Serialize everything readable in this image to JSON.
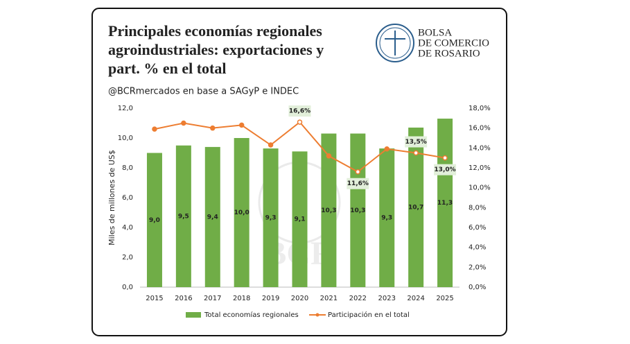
{
  "chart_data": {
    "type": "bar",
    "title_lines": [
      "Principales economías regionales",
      "agroindustriales: exportaciones y",
      "part. % en el total"
    ],
    "subtitle": "@BCRmercados en base a SAGyP e INDEC",
    "logo": [
      "BOLSA",
      "DE COMERCIO",
      "DE ROSARIO"
    ],
    "watermark": "BCR",
    "y_label": "Miles de millones de US$",
    "categories": [
      "2015",
      "2016",
      "2017",
      "2018",
      "2019",
      "2020",
      "2021",
      "2022",
      "2023",
      "2024",
      "2025"
    ],
    "series": [
      {
        "name": "Total economías regionales",
        "type": "bar",
        "color": "#70ad47",
        "values": [
          9.0,
          9.5,
          9.4,
          10.0,
          9.3,
          9.1,
          10.3,
          10.3,
          9.3,
          10.7,
          11.3
        ],
        "value_labels": [
          "9,0",
          "9,5",
          "9,4",
          "10,0",
          "9,3",
          "9,1",
          "10,3",
          "10,3",
          "9,3",
          "10,7",
          "11,3"
        ]
      },
      {
        "name": "Participación en el total",
        "type": "line",
        "axis": "y2",
        "color": "#ed7d31",
        "values": [
          15.9,
          16.5,
          16.0,
          16.3,
          14.3,
          16.6,
          13.2,
          11.6,
          13.9,
          13.5,
          13.0
        ],
        "value_labels": [
          null,
          null,
          null,
          null,
          null,
          "16,6%",
          null,
          "11,6%",
          null,
          "13,5%",
          "13,0%"
        ]
      }
    ],
    "ylim": [
      0,
      12
    ],
    "yticks": [
      {
        "value": 0,
        "label": "0,0"
      },
      {
        "value": 2,
        "label": "2,0"
      },
      {
        "value": 4,
        "label": "4,0"
      },
      {
        "value": 6,
        "label": "6,0"
      },
      {
        "value": 8,
        "label": "8,0"
      },
      {
        "value": 10,
        "label": "10,0"
      },
      {
        "value": 12,
        "label": "12,0"
      }
    ],
    "y2lim": [
      0,
      18
    ],
    "y2ticks": [
      {
        "value": 0,
        "label": "0,0%"
      },
      {
        "value": 2,
        "label": "2,0%"
      },
      {
        "value": 4,
        "label": "4,0%"
      },
      {
        "value": 6,
        "label": "6,0%"
      },
      {
        "value": 8,
        "label": "8,0%"
      },
      {
        "value": 10,
        "label": "10,0%"
      },
      {
        "value": 12,
        "label": "12,0%"
      },
      {
        "value": 14,
        "label": "14,0%"
      },
      {
        "value": 16,
        "label": "16,0%"
      },
      {
        "value": 18,
        "label": "18,0%"
      }
    ],
    "grid": false,
    "legend": "bottom"
  }
}
